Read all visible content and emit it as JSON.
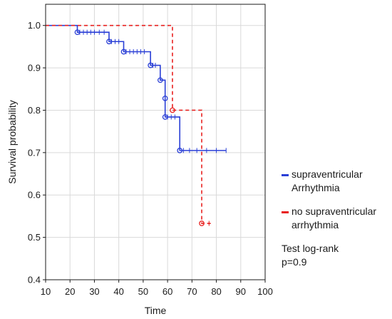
{
  "chart_data": {
    "type": "line",
    "subtype": "kaplan-meier",
    "xlabel": "Time",
    "ylabel": "Survival probability",
    "xlim": [
      10,
      100
    ],
    "ylim": [
      0.4,
      1.05
    ],
    "xticks": [
      10,
      20,
      30,
      40,
      50,
      60,
      70,
      80,
      90,
      100
    ],
    "yticks": [
      0.4,
      0.5,
      0.6,
      0.7,
      0.8,
      0.9,
      1.0
    ],
    "grid": true,
    "legend_position": "right",
    "series": [
      {
        "name": "supraventricular Arrhythmia",
        "name_lines": [
          "supraventricular",
          "Arrhythmia"
        ],
        "color": "#2a3fd6",
        "style": "solid",
        "steps": [
          {
            "x": 10,
            "y": 1.0
          },
          {
            "x": 23,
            "y": 0.984
          },
          {
            "x": 36,
            "y": 0.962
          },
          {
            "x": 42,
            "y": 0.938
          },
          {
            "x": 53,
            "y": 0.906
          },
          {
            "x": 57,
            "y": 0.871
          },
          {
            "x": 59,
            "y": 0.828
          },
          {
            "x": 59,
            "y": 0.784
          },
          {
            "x": 65,
            "y": 0.705
          }
        ],
        "end_x": 84,
        "events": [
          {
            "x": 23,
            "y": 0.984
          },
          {
            "x": 36,
            "y": 0.962
          },
          {
            "x": 42,
            "y": 0.938
          },
          {
            "x": 53,
            "y": 0.906
          },
          {
            "x": 57,
            "y": 0.871
          },
          {
            "x": 59,
            "y": 0.828
          },
          {
            "x": 59,
            "y": 0.784
          },
          {
            "x": 65,
            "y": 0.705
          }
        ],
        "censored": [
          {
            "x": 24,
            "y": 0.984
          },
          {
            "x": 25.5,
            "y": 0.984
          },
          {
            "x": 27,
            "y": 0.984
          },
          {
            "x": 28.5,
            "y": 0.984
          },
          {
            "x": 30,
            "y": 0.984
          },
          {
            "x": 32,
            "y": 0.984
          },
          {
            "x": 34,
            "y": 0.984
          },
          {
            "x": 37,
            "y": 0.962
          },
          {
            "x": 38.5,
            "y": 0.962
          },
          {
            "x": 40,
            "y": 0.962
          },
          {
            "x": 43,
            "y": 0.938
          },
          {
            "x": 44.5,
            "y": 0.938
          },
          {
            "x": 46,
            "y": 0.938
          },
          {
            "x": 47.5,
            "y": 0.938
          },
          {
            "x": 49,
            "y": 0.938
          },
          {
            "x": 50.5,
            "y": 0.938
          },
          {
            "x": 54,
            "y": 0.906
          },
          {
            "x": 55,
            "y": 0.906
          },
          {
            "x": 60,
            "y": 0.784
          },
          {
            "x": 61.5,
            "y": 0.784
          },
          {
            "x": 63,
            "y": 0.784
          },
          {
            "x": 66.5,
            "y": 0.705
          },
          {
            "x": 69,
            "y": 0.705
          },
          {
            "x": 72,
            "y": 0.705
          },
          {
            "x": 76,
            "y": 0.705
          },
          {
            "x": 80,
            "y": 0.705
          },
          {
            "x": 84,
            "y": 0.705
          }
        ]
      },
      {
        "name": "no supraventricular arrhythmia",
        "name_lines": [
          "no supraventricular",
          "arrhythmia"
        ],
        "color": "#e8201f",
        "style": "dashed",
        "steps": [
          {
            "x": 10,
            "y": 1.0
          },
          {
            "x": 62,
            "y": 0.8
          },
          {
            "x": 74,
            "y": 0.533
          }
        ],
        "end_x": 78,
        "events": [
          {
            "x": 62,
            "y": 0.8
          },
          {
            "x": 74,
            "y": 0.533
          }
        ],
        "censored": [
          {
            "x": 77,
            "y": 0.533
          }
        ]
      }
    ],
    "annotations": [
      "Test log-rank",
      "p=0.9"
    ]
  },
  "colors": {
    "axis": "#1a1a1a",
    "grid": "#d9d9d9"
  }
}
